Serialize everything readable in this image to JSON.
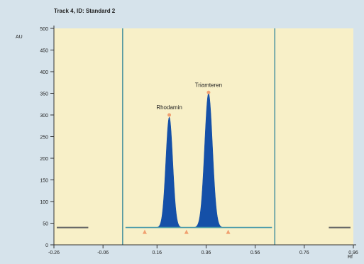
{
  "chart_data": {
    "type": "area",
    "title": "Track 4, ID: Standard 2",
    "ylabel": "AU",
    "xlabel": "Rf",
    "xlim": [
      -0.26,
      0.96
    ],
    "ylim": [
      0,
      500
    ],
    "xticks": [
      -0.26,
      -0.06,
      0.16,
      0.36,
      0.56,
      0.76,
      0.96
    ],
    "xtick_labels": [
      "-0.26",
      "-0.06",
      "0.16",
      "0.36",
      "0.56",
      "0.76",
      "0.96"
    ],
    "yticks": [
      0,
      50,
      100,
      150,
      200,
      250,
      300,
      350,
      400,
      450,
      500
    ],
    "ytick_labels": [
      "0",
      "50",
      "100",
      "150",
      "200",
      "250",
      "300",
      "350",
      "400",
      "450",
      "500"
    ],
    "grid": false,
    "baseline": 40,
    "integration_window": [
      0.02,
      0.64
    ],
    "peaks": [
      {
        "name": "Rhodamin",
        "rf": 0.21,
        "height": 295,
        "max_marker": 300
      },
      {
        "name": "Triamteren",
        "rf": 0.37,
        "height": 350,
        "max_marker": 352
      }
    ],
    "boundary_markers": [
      0.11,
      0.28,
      0.45
    ],
    "colors": {
      "page_background": "#d6e3eb",
      "plot_background": "#f8f0c8",
      "peak_fill": "#1550a8",
      "baseline_line": "#4a9aaa",
      "window_line": "#3a8a9a",
      "peak_marker": "#f0a070",
      "axis": "#333333",
      "text": "#222222"
    }
  }
}
